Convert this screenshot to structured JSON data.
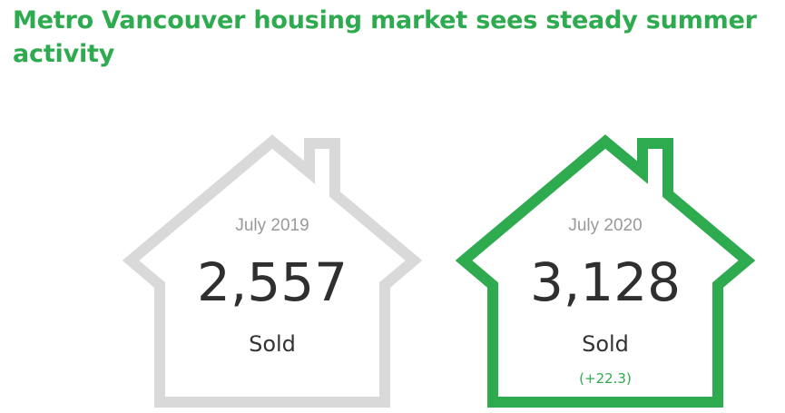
{
  "headline": "Metro Vancouver housing market sees steady summer activity",
  "colors": {
    "accent": "#2eaa4f",
    "previous_outline": "#d9d9d9",
    "current_outline": "#2eaa4f"
  },
  "cards": [
    {
      "period": "July 2019",
      "count": "2,557",
      "unit": "Sold",
      "change": ""
    },
    {
      "period": "July 2020",
      "count": "3,128",
      "unit": "Sold",
      "change": "(+22.3)"
    }
  ]
}
